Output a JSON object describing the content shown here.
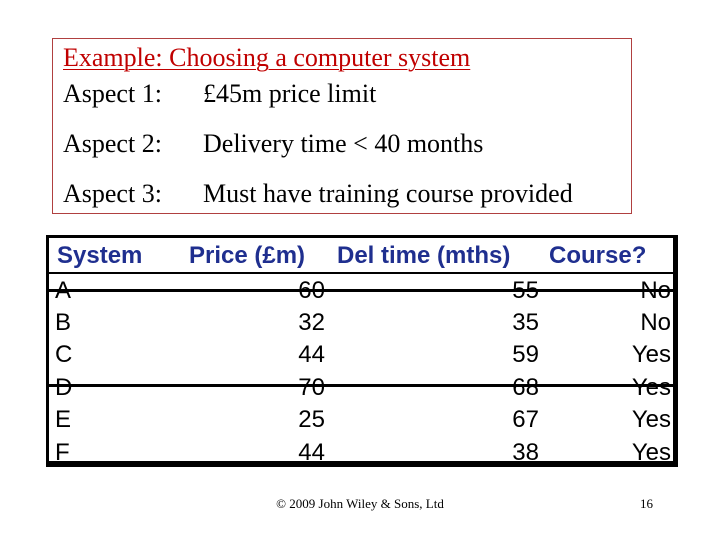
{
  "aspects_box": {
    "title": "Example: Choosing a computer system",
    "aspects": [
      {
        "label": "Aspect 1:",
        "text": "£45m  price limit"
      },
      {
        "label": "Aspect 2:",
        "text": "Delivery time < 40 months"
      },
      {
        "label": "Aspect 3:",
        "text": "Must have training course provided"
      }
    ]
  },
  "table": {
    "headers": {
      "system": "System",
      "price": "Price (£m)",
      "delivery": "Del time (mths)",
      "course": "Course?"
    },
    "rows": [
      {
        "system": "A",
        "price": "60",
        "delivery": "55",
        "course": "No",
        "struck_out": true
      },
      {
        "system": "B",
        "price": "32",
        "delivery": "35",
        "course": "No",
        "struck_out": false
      },
      {
        "system": "C",
        "price": "44",
        "delivery": "59",
        "course": "Yes",
        "struck_out": false
      },
      {
        "system": "D",
        "price": "70",
        "delivery": "68",
        "course": "Yes",
        "struck_out": true
      },
      {
        "system": "E",
        "price": "25",
        "delivery": "67",
        "course": "Yes",
        "struck_out": false
      },
      {
        "system": "F",
        "price": "44",
        "delivery": "38",
        "course": "Yes",
        "struck_out": false
      }
    ]
  },
  "footer": {
    "copyright": "© 2009 John Wiley & Sons, Ltd",
    "page_number": "16"
  }
}
